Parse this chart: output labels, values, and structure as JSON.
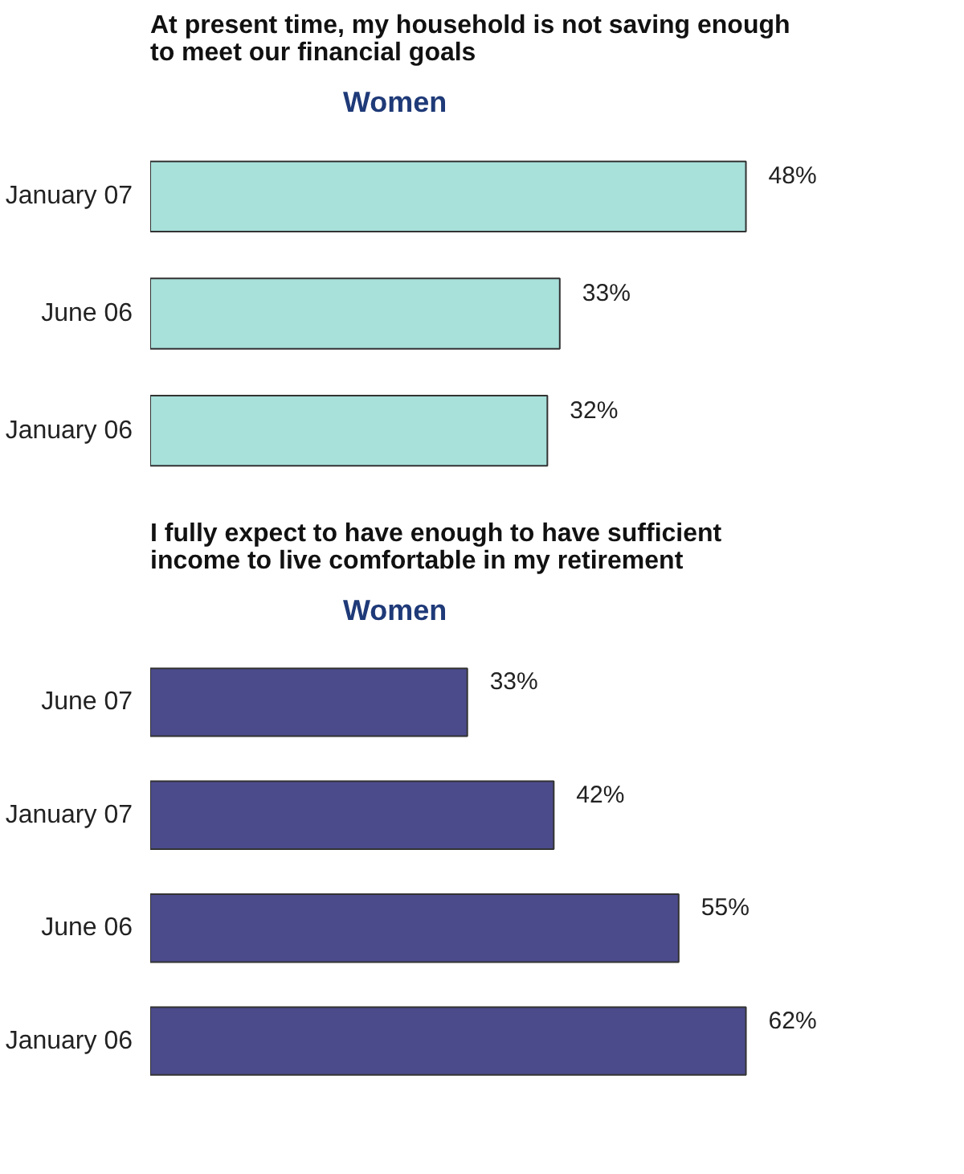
{
  "chart_data": [
    {
      "type": "bar",
      "orientation": "horizontal",
      "title": "At present time, my household is not saving enough to meet our financial goals",
      "subtitle": "Women",
      "categories": [
        "January 07",
        "June 06",
        "January 06"
      ],
      "values": [
        48,
        33,
        32
      ],
      "value_labels": [
        "48%",
        "33%",
        "32%"
      ],
      "color": "#a8e0da",
      "tick_labels": "y",
      "grid": false
    },
    {
      "type": "bar",
      "orientation": "horizontal",
      "title": "I fully expect to have enough to have sufficient income to live comfortable in my retirement",
      "subtitle": "Women",
      "categories": [
        "June 07",
        "January 07",
        "June 06",
        "January 06"
      ],
      "values": [
        33,
        42,
        55,
        62
      ],
      "value_labels": [
        "33%",
        "42%",
        "55%",
        "62%"
      ],
      "color": "#4b4b8c",
      "tick_labels": "y",
      "grid": false
    }
  ]
}
